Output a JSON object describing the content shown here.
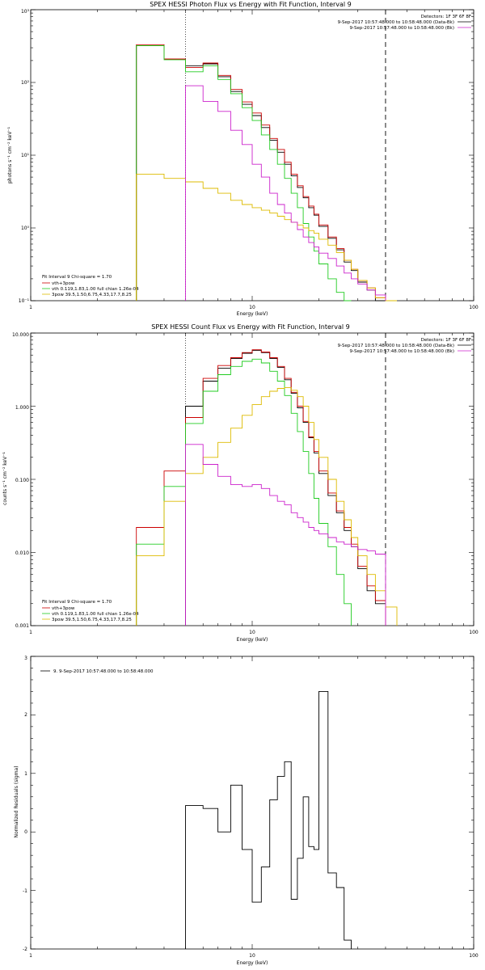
{
  "panels": [
    {
      "id": "photon",
      "title": "SPEX HESSI Photon Flux vs Energy with Fit Function, Interval 9",
      "xlabel": "Energy (keV)",
      "ylabel": "photons s⁻¹ cm⁻² keV⁻¹",
      "xticks": [
        "1",
        "10",
        "100"
      ],
      "yticks": [
        "10⁻¹",
        "10⁰",
        "10¹",
        "10²",
        "10³"
      ],
      "legend_top": [
        "Detectors: 1F 3F 6F 8F",
        "9-Sep-2017 10:57:48.000 to 10:58:48.000 (Data-Bk)",
        "9-Sep-2017 10:57:48.000 to 10:58:48.000 (Bk)"
      ],
      "legend_bottom_header": "Fit Interval  9    Chi-square = 1.70",
      "legend_bottom": [
        "vth+3pow",
        "vth 0.119,1.83,1.00  full chian 1.26e-04",
        "3pow 39.5,1.50,6.75,4.33,17.7,8.25"
      ]
    },
    {
      "id": "count",
      "title": "SPEX HESSI Count Flux vs Energy with Fit Function, Interval 9",
      "xlabel": "Energy (keV)",
      "ylabel": "counts s⁻¹ cm⁻² keV⁻¹",
      "xticks": [
        "1",
        "10",
        "100"
      ],
      "yticks": [
        "0.001",
        "0.010",
        "0.100",
        "1.000",
        "10.000"
      ],
      "legend_top": [
        "Detectors: 1F 3F 6F 8F",
        "9-Sep-2017 10:57:48.000 to 10:58:48.000 (Data-Bk)",
        "9-Sep-2017 10:57:48.000 to 10:58:48.000 (Bk)"
      ],
      "legend_bottom_header": "Fit Interval  9    Chi-square = 1.70",
      "legend_bottom": [
        "vth+3pow",
        "vth 0.119,1.83,1.00  full chian 1.26e-04",
        "3pow 39.5,1.50,6.75,4.33,17.7,8.25"
      ]
    },
    {
      "id": "residuals",
      "xlabel": "Energy (keV)",
      "ylabel": "Normalized Residuals (sigma)",
      "xticks": [
        "1",
        "10",
        "100"
      ],
      "yticks": [
        "-2",
        "-1",
        "0",
        "1",
        "2",
        "3"
      ],
      "legend": "9.  9-Sep-2017 10:57:48.000 to 10:58:48.000"
    }
  ],
  "colors": {
    "data": "#000000",
    "total": "#cc0000",
    "thermal": "#22cc22",
    "power": "#ddbb00",
    "background": "#cc22cc"
  },
  "chart_data": [
    {
      "type": "line",
      "title": "SPEX HESSI Photon Flux vs Energy with Fit Function, Interval 9",
      "xlabel": "Energy (keV)",
      "ylabel": "photons s-1 cm-2 keV-1",
      "xscale": "log",
      "yscale": "log",
      "xlim": [
        1,
        100
      ],
      "ylim": [
        0.1,
        1000
      ],
      "vlines": [
        5,
        40
      ],
      "edges": [
        3,
        4,
        5,
        6,
        7,
        8,
        9,
        10,
        11,
        12,
        13,
        14,
        15,
        16,
        17,
        18,
        19,
        20,
        22,
        24,
        26,
        28,
        30,
        33,
        36,
        40,
        45
      ],
      "series": [
        {
          "name": "Data-Bk",
          "color_key": "data",
          "values": [
            320,
            210,
            170,
            180,
            120,
            75,
            50,
            35,
            24,
            16,
            11,
            7.5,
            5.2,
            3.6,
            2.6,
            1.9,
            1.5,
            1.05,
            0.72,
            0.5,
            0.34,
            0.26,
            0.18,
            0.14,
            0.1,
            null
          ]
        },
        {
          "name": "vth+3pow",
          "color_key": "total",
          "values": [
            330,
            210,
            160,
            185,
            125,
            80,
            54,
            38,
            26,
            17,
            12,
            8,
            5.5,
            3.8,
            2.7,
            2.0,
            1.55,
            1.1,
            0.75,
            0.52,
            0.36,
            0.27,
            0.19,
            0.15,
            0.11,
            null
          ]
        },
        {
          "name": "vth",
          "color_key": "thermal",
          "values": [
            320,
            205,
            140,
            170,
            110,
            70,
            45,
            30,
            19,
            12,
            7.5,
            4.8,
            3.0,
            1.9,
            1.15,
            0.75,
            0.48,
            0.32,
            0.2,
            0.13,
            0.1,
            null,
            null,
            null,
            null,
            null
          ]
        },
        {
          "name": "3pow",
          "color_key": "power",
          "values": [
            5.5,
            4.8,
            4.3,
            3.5,
            3.0,
            2.4,
            2.1,
            1.9,
            1.75,
            1.6,
            1.45,
            1.3,
            1.2,
            1.1,
            1.0,
            0.92,
            0.85,
            0.7,
            0.58,
            0.46,
            0.36,
            0.27,
            0.19,
            0.15,
            0.11,
            0.1
          ]
        },
        {
          "name": "Bk",
          "color_key": "background",
          "values": [
            null,
            null,
            90,
            55,
            40,
            22,
            14,
            7.5,
            5.0,
            3.0,
            2.1,
            1.6,
            1.2,
            0.95,
            0.75,
            0.63,
            0.55,
            0.45,
            0.38,
            0.3,
            0.24,
            0.2,
            0.17,
            0.14,
            0.12,
            null
          ]
        }
      ]
    },
    {
      "type": "line",
      "title": "SPEX HESSI Count Flux vs Energy with Fit Function, Interval 9",
      "xlabel": "Energy (keV)",
      "ylabel": "counts s-1 cm-2 keV-1",
      "xscale": "log",
      "yscale": "log",
      "xlim": [
        1,
        100
      ],
      "ylim": [
        0.001,
        10
      ],
      "vlines": [
        5,
        40
      ],
      "edges": [
        3,
        4,
        5,
        6,
        7,
        8,
        9,
        10,
        11,
        12,
        13,
        14,
        15,
        16,
        17,
        18,
        19,
        20,
        22,
        24,
        26,
        28,
        30,
        33,
        36,
        40,
        45
      ],
      "series": [
        {
          "name": "Data-Bk",
          "color_key": "data",
          "values": [
            null,
            null,
            1.0,
            2.2,
            3.3,
            4.5,
            5.3,
            5.8,
            5.4,
            4.5,
            3.4,
            2.3,
            1.5,
            0.95,
            0.6,
            0.37,
            0.23,
            0.12,
            0.06,
            0.035,
            0.02,
            0.012,
            0.006,
            0.003,
            0.002,
            null
          ]
        },
        {
          "name": "vth+3pow",
          "color_key": "total",
          "values": [
            0.022,
            0.13,
            0.7,
            2.4,
            3.6,
            4.6,
            5.4,
            5.9,
            5.5,
            4.6,
            3.5,
            2.4,
            1.55,
            1.0,
            0.62,
            0.38,
            0.24,
            0.13,
            0.065,
            0.037,
            0.022,
            0.013,
            0.0065,
            0.0035,
            0.0022,
            null
          ]
        },
        {
          "name": "vth",
          "color_key": "thermal",
          "values": [
            0.013,
            0.08,
            0.58,
            1.6,
            2.7,
            3.5,
            4.1,
            4.4,
            3.9,
            3.0,
            2.2,
            1.4,
            0.8,
            0.45,
            0.24,
            0.12,
            0.055,
            0.025,
            0.012,
            0.005,
            0.002,
            null,
            null,
            null,
            null,
            null
          ]
        },
        {
          "name": "3pow",
          "color_key": "power",
          "values": [
            0.009,
            0.05,
            0.12,
            0.2,
            0.32,
            0.5,
            0.75,
            1.05,
            1.35,
            1.6,
            1.75,
            1.8,
            1.65,
            1.35,
            1.0,
            0.6,
            0.35,
            0.2,
            0.1,
            0.05,
            0.028,
            0.016,
            0.009,
            0.005,
            0.003,
            0.0018
          ]
        },
        {
          "name": "Bk",
          "color_key": "background",
          "values": [
            null,
            null,
            0.3,
            0.16,
            0.11,
            0.085,
            0.08,
            0.085,
            0.075,
            0.06,
            0.05,
            0.045,
            0.035,
            0.03,
            0.026,
            0.022,
            0.02,
            0.018,
            0.016,
            0.014,
            0.013,
            0.012,
            0.011,
            0.0105,
            0.0095,
            null
          ]
        }
      ]
    },
    {
      "type": "line",
      "xlabel": "Energy (keV)",
      "ylabel": "Normalized Residuals (sigma)",
      "xscale": "log",
      "xlim": [
        1,
        100
      ],
      "ylim": [
        -2,
        3
      ],
      "edges": [
        5,
        6,
        7,
        8,
        9,
        10,
        11,
        12,
        13,
        14,
        15,
        16,
        17,
        18,
        19,
        20,
        22,
        24,
        26,
        28,
        30,
        33,
        36,
        40
      ],
      "series": [
        {
          "name": "9.  9-Sep-2017 10:57:48.000 to 10:58:48.000",
          "color_key": "data",
          "values": [
            0.45,
            0.4,
            0.0,
            0.8,
            -0.3,
            -1.2,
            -0.6,
            0.55,
            0.95,
            1.2,
            -1.15,
            -0.45,
            0.6,
            -0.25,
            -0.3,
            2.4,
            -0.7,
            -0.95,
            -1.85
          ]
        }
      ]
    }
  ]
}
